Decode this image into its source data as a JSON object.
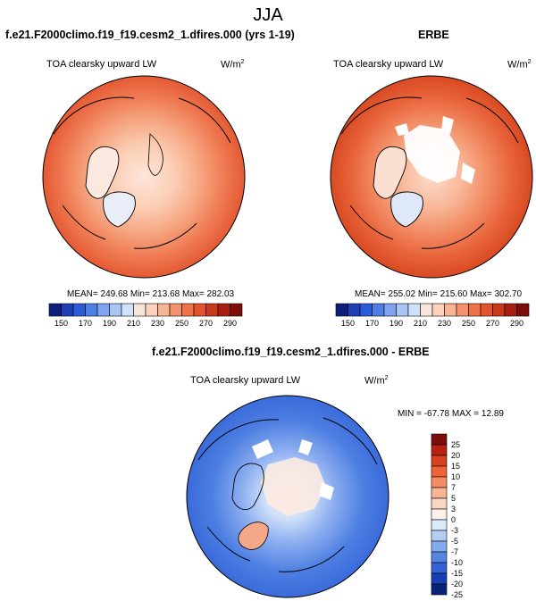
{
  "page": {
    "title": "JJA"
  },
  "panels": [
    {
      "heading": "f.e21.F2000climo.f19_f19.cesm2_1.dfires.000 (yrs 1-19)",
      "variable": "TOA clearsky upward LW",
      "units_base": "W/m",
      "units_exp": "2",
      "stats": "MEAN= 249.68  Min= 213.68  Max= 282.03"
    },
    {
      "heading": "ERBE",
      "variable": "TOA clearsky upward LW",
      "units_base": "W/m",
      "units_exp": "2",
      "stats": "MEAN= 255.02  Min= 215.60  Max= 302.70"
    },
    {
      "heading": "f.e21.F2000climo.f19_f19.cesm2_1.dfires.000 - ERBE",
      "variable": "TOA clearsky upward LW",
      "units_base": "W/m",
      "units_exp": "2",
      "stats": "MIN = -67.78 MAX =  12.89"
    }
  ],
  "abs_colorbar": {
    "labels": [
      "150",
      "170",
      "190",
      "210",
      "230",
      "250",
      "270",
      "290"
    ],
    "colors": [
      "#0b1f7a",
      "#1f3fb8",
      "#2c5bd6",
      "#4f7ee6",
      "#7ea3f0",
      "#a8c5f6",
      "#cfe1fb",
      "#f8e6dc",
      "#fbd2bc",
      "#f8b596",
      "#f4926c",
      "#ef7248",
      "#e2532e",
      "#c93a1c",
      "#a81f12",
      "#7c0d09"
    ]
  },
  "diff_colorbar": {
    "labels": [
      "25",
      "20",
      "15",
      "10",
      "7",
      "5",
      "3",
      "0",
      "-3",
      "-5",
      "-7",
      "-10",
      "-15",
      "-20",
      "-25"
    ],
    "colors": [
      "#7c0d09",
      "#b5220f",
      "#d8411f",
      "#ef6339",
      "#f58b62",
      "#f8b394",
      "#fbd6c3",
      "#fdf1ea",
      "#dbe9fb",
      "#b3cdf5",
      "#85abee",
      "#5785e2",
      "#3462d6",
      "#1a3fb3",
      "#08227a"
    ]
  }
}
